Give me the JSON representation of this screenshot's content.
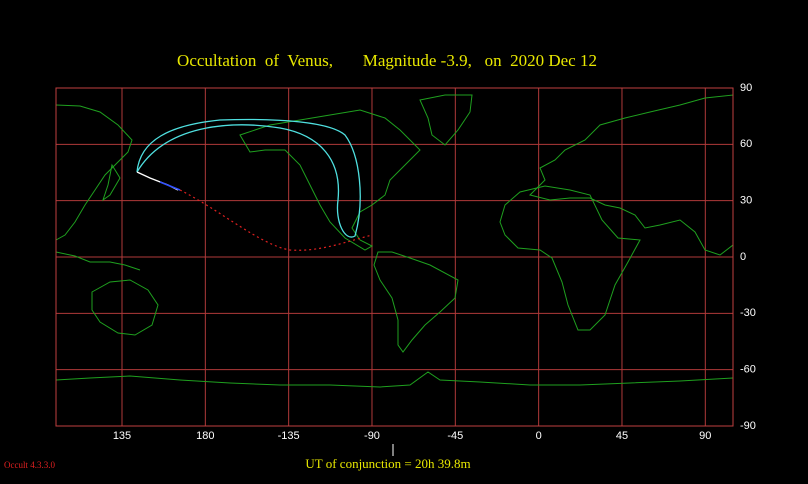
{
  "header": {
    "title": "Occultation  of  Venus,       Magnitude -3.9,   on  2020 Dec 12"
  },
  "map": {
    "lon_ticks": [
      135,
      180,
      -135,
      -90,
      -45,
      0,
      45,
      90
    ],
    "lat_ticks": [
      90,
      60,
      30,
      0,
      -30,
      -60,
      -90
    ]
  },
  "footer": {
    "conjunction": "UT of conjunction = 20h 39.8m",
    "version": "Occult 4.3.3.0"
  }
}
